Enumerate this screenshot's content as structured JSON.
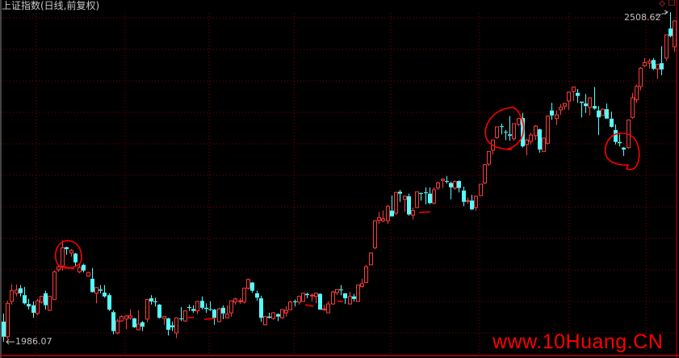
{
  "header": {
    "title": "上证指数(日线,前复权)"
  },
  "toolbar": {
    "icons": [
      "diamond-icon",
      "square-icon"
    ]
  },
  "watermark": "www.10Huang.CN",
  "colors": {
    "up": "#ff3c3c",
    "down": "#54fcfc",
    "grid": "#8a0000",
    "background": "#000000",
    "annotation": "#ff0000"
  },
  "chart_data": {
    "type": "candlestick",
    "title": "上证指数(日线,前复权)",
    "ohlc_format": [
      "open",
      "high",
      "low",
      "close"
    ],
    "grid": true,
    "max_label": "2508.62",
    "min_label": "1986.07",
    "candles": [
      [
        2018,
        2031,
        1986.07,
        1994
      ],
      [
        1994,
        2051,
        1990,
        2047
      ],
      [
        2050,
        2077,
        2045,
        2067
      ],
      [
        2063,
        2077,
        2058,
        2068
      ],
      [
        2071,
        2076,
        2058,
        2063
      ],
      [
        2060,
        2073,
        2045,
        2047
      ],
      [
        2046,
        2054,
        2037,
        2042
      ],
      [
        2044,
        2050,
        2024,
        2032
      ],
      [
        2031,
        2054,
        2028,
        2051
      ],
      [
        2049,
        2059,
        2047,
        2058
      ],
      [
        2063,
        2067,
        2037,
        2044
      ],
      [
        2036,
        2059,
        2035,
        2058
      ],
      [
        2053,
        2099,
        2053,
        2097
      ],
      [
        2100,
        2108,
        2097,
        2105
      ],
      [
        2106,
        2147,
        2099,
        2135
      ],
      [
        2136,
        2137,
        2124,
        2133
      ],
      [
        2127,
        2133,
        2121,
        2131
      ],
      [
        2126,
        2127,
        2106,
        2112
      ],
      [
        2097,
        2109,
        2095,
        2104
      ],
      [
        2108,
        2110,
        2096,
        2099
      ],
      [
        2090,
        2097,
        2089,
        2096
      ],
      [
        2086,
        2103,
        2064,
        2065
      ],
      [
        2063,
        2073,
        2047,
        2072
      ],
      [
        2069,
        2076,
        2063,
        2067
      ],
      [
        2064,
        2076,
        2056,
        2058
      ],
      [
        2060,
        2063,
        2035,
        2037
      ],
      [
        2033,
        2036,
        1998,
        2003
      ],
      [
        2000,
        2022,
        1998,
        2019
      ],
      [
        2019,
        2028,
        2018,
        2026
      ],
      [
        2022,
        2028,
        2006,
        2027
      ],
      [
        2024,
        2037,
        2021,
        2027
      ],
      [
        2023,
        2024,
        2008,
        2009
      ],
      [
        2005,
        2036,
        2004,
        2014
      ],
      [
        2017,
        2019,
        2003,
        2010
      ],
      [
        2022,
        2054,
        2017,
        2053
      ],
      [
        2055,
        2060,
        2045,
        2050
      ],
      [
        2050,
        2056,
        2042,
        2049
      ],
      [
        2045,
        2046,
        2023,
        2024
      ],
      [
        2023,
        2027,
        2013,
        2026
      ],
      [
        2023,
        2024,
        1996,
        2005
      ],
      [
        2012,
        2018,
        2003,
        2009
      ],
      [
        2000,
        2024,
        1992,
        2024
      ],
      [
        2023,
        2041,
        2019,
        2022
      ],
      [
        2019,
        2035,
        2018,
        2035
      ],
      [
        2041,
        2045,
        2035,
        2040
      ],
      [
        2038,
        2044,
        2032,
        2035
      ],
      [
        2035,
        2051,
        2030,
        2050
      ],
      [
        2051,
        2058,
        2037,
        2040
      ],
      [
        2040,
        2047,
        2032,
        2038
      ],
      [
        2038,
        2050,
        2035,
        2037
      ],
      [
        2037,
        2038,
        2013,
        2024
      ],
      [
        2018,
        2040,
        2017,
        2038
      ],
      [
        2040,
        2044,
        2022,
        2031
      ],
      [
        2024,
        2044,
        2023,
        2030
      ],
      [
        2032,
        2052,
        2026,
        2051
      ],
      [
        2049,
        2056,
        2045,
        2054
      ],
      [
        2050,
        2055,
        2046,
        2051
      ],
      [
        2049,
        2071,
        2047,
        2071
      ],
      [
        2071,
        2086,
        2069,
        2085
      ],
      [
        2080,
        2081,
        2064,
        2067
      ],
      [
        2063,
        2067,
        2051,
        2056
      ],
      [
        2055,
        2059,
        2018,
        2024
      ],
      [
        2013,
        2027,
        2012,
        2026
      ],
      [
        2026,
        2032,
        2023,
        2024
      ],
      [
        2023,
        2033,
        2021,
        2032
      ],
      [
        2030,
        2031,
        2019,
        2026
      ],
      [
        2024,
        2038,
        2023,
        2037
      ],
      [
        2032,
        2042,
        2026,
        2036
      ],
      [
        2037,
        2051,
        2036,
        2049
      ],
      [
        2050,
        2053,
        2042,
        2049
      ],
      [
        2049,
        2059,
        2045,
        2058
      ],
      [
        2050,
        2064,
        2050,
        2063
      ],
      [
        2062,
        2064,
        2055,
        2060
      ],
      [
        2059,
        2063,
        2050,
        2060
      ],
      [
        2058,
        2064,
        2047,
        2063
      ],
      [
        2062,
        2063,
        2037,
        2037
      ],
      [
        2037,
        2045,
        2035,
        2038
      ],
      [
        2032,
        2050,
        2032,
        2046
      ],
      [
        2046,
        2067,
        2045,
        2065
      ],
      [
        2064,
        2069,
        2060,
        2069
      ],
      [
        2069,
        2076,
        2060,
        2068
      ],
      [
        2063,
        2063,
        2046,
        2055
      ],
      [
        2046,
        2065,
        2045,
        2058
      ],
      [
        2058,
        2062,
        2050,
        2054
      ],
      [
        2050,
        2076,
        2049,
        2076
      ],
      [
        2074,
        2086,
        2072,
        2078
      ],
      [
        2080,
        2108,
        2080,
        2105
      ],
      [
        2108,
        2127,
        2108,
        2127
      ],
      [
        2135,
        2179,
        2133,
        2178
      ],
      [
        2179,
        2192,
        2173,
        2183
      ],
      [
        2178,
        2194,
        2176,
        2181
      ],
      [
        2178,
        2203,
        2173,
        2201
      ],
      [
        2194,
        2218,
        2185,
        2185
      ],
      [
        2190,
        2223,
        2187,
        2223
      ],
      [
        2224,
        2227,
        2208,
        2221
      ],
      [
        2212,
        2218,
        2192,
        2217
      ],
      [
        2217,
        2221,
        2186,
        2188
      ],
      [
        2187,
        2199,
        2180,
        2194
      ],
      [
        2199,
        2224,
        2199,
        2224
      ],
      [
        2222,
        2223,
        2210,
        2221
      ],
      [
        2223,
        2231,
        2204,
        2222
      ],
      [
        2221,
        2231,
        2204,
        2206
      ],
      [
        2206,
        2231,
        2204,
        2227
      ],
      [
        2230,
        2240,
        2227,
        2238
      ],
      [
        2242,
        2245,
        2230,
        2244
      ],
      [
        2241,
        2249,
        2237,
        2240
      ],
      [
        2238,
        2240,
        2212,
        2231
      ],
      [
        2230,
        2242,
        2227,
        2240
      ],
      [
        2241,
        2242,
        2223,
        2230
      ],
      [
        2226,
        2232,
        2201,
        2208
      ],
      [
        2209,
        2215,
        2205,
        2210
      ],
      [
        2210,
        2219,
        2195,
        2196
      ],
      [
        2199,
        2218,
        2194,
        2217
      ],
      [
        2218,
        2236,
        2217,
        2236
      ],
      [
        2238,
        2268,
        2236,
        2267
      ],
      [
        2268,
        2288,
        2265,
        2288
      ],
      [
        2290,
        2306,
        2283,
        2306
      ],
      [
        2310,
        2327,
        2308,
        2327
      ],
      [
        2328,
        2332,
        2315,
        2327
      ],
      [
        2319,
        2322,
        2306,
        2318
      ],
      [
        2315,
        2344,
        2305,
        2313
      ],
      [
        2308,
        2332,
        2305,
        2332
      ],
      [
        2331,
        2341,
        2328,
        2340
      ],
      [
        2341,
        2349,
        2294,
        2296
      ],
      [
        2299,
        2308,
        2282,
        2306
      ],
      [
        2304,
        2318,
        2299,
        2314
      ],
      [
        2313,
        2330,
        2306,
        2328
      ],
      [
        2323,
        2324,
        2286,
        2291
      ],
      [
        2288,
        2310,
        2288,
        2309
      ],
      [
        2301,
        2345,
        2299,
        2344
      ],
      [
        2353,
        2365,
        2338,
        2345
      ],
      [
        2340,
        2353,
        2330,
        2346
      ],
      [
        2354,
        2363,
        2346,
        2358
      ],
      [
        2360,
        2365,
        2354,
        2364
      ],
      [
        2368,
        2383,
        2354,
        2382
      ],
      [
        2383,
        2391,
        2368,
        2390
      ],
      [
        2381,
        2387,
        2365,
        2376
      ],
      [
        2367,
        2367,
        2342,
        2365
      ],
      [
        2364,
        2379,
        2349,
        2360
      ],
      [
        2358,
        2374,
        2345,
        2373
      ],
      [
        2360,
        2390,
        2354,
        2356
      ],
      [
        2353,
        2360,
        2314,
        2342
      ],
      [
        2345,
        2356,
        2345,
        2355
      ],
      [
        2355,
        2364,
        2340,
        2340
      ],
      [
        2340,
        2351,
        2326,
        2327
      ],
      [
        2322,
        2331,
        2299,
        2303
      ],
      [
        2303,
        2315,
        2296,
        2301
      ],
      [
        2294,
        2295,
        2281,
        2291
      ],
      [
        2294,
        2338,
        2292,
        2338
      ],
      [
        2342,
        2381,
        2340,
        2373
      ],
      [
        2370,
        2394,
        2365,
        2391
      ],
      [
        2391,
        2422,
        2385,
        2420
      ],
      [
        2424,
        2436,
        2422,
        2429
      ],
      [
        2428,
        2435,
        2419,
        2431
      ],
      [
        2433,
        2436,
        2417,
        2419
      ],
      [
        2419,
        2427,
        2403,
        2426
      ],
      [
        2428,
        2455,
        2409,
        2418
      ],
      [
        2436,
        2473,
        2432,
        2473
      ],
      [
        2483,
        2508.62,
        2469,
        2471
      ],
      [
        2454,
        2496,
        2446,
        2495
      ]
    ]
  }
}
